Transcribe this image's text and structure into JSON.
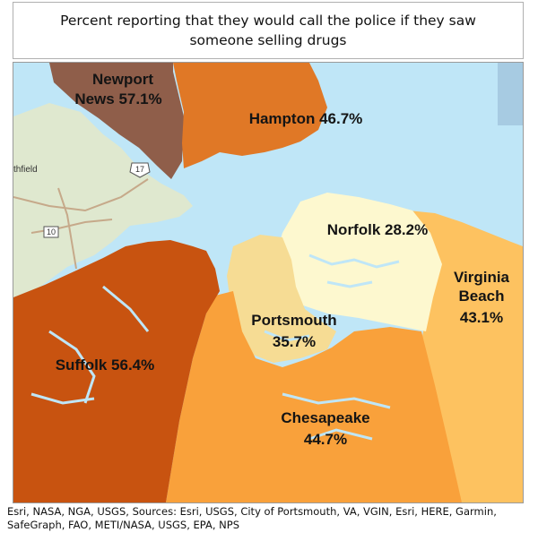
{
  "title": "Percent reporting that they would call the police if they saw someone selling drugs",
  "credits": "Esri, NASA, NGA, USGS, Sources: Esri, USGS, City of Portsmouth, VA, VGIN, Esri, HERE, Garmin, SafeGraph, FAO, METI/NASA, USGS, EPA, NPS",
  "colors": {
    "water": "#bfe6f7",
    "land": "#dfe8cf",
    "newport_news": "#8f5e4a",
    "hampton": "#e07826",
    "norfolk": "#fdf8cf",
    "virginia_beach": "#fdc260",
    "portsmouth": "#f6dc94",
    "chesapeake": "#f9a13b",
    "suffolk": "#c85310",
    "offshore": "#a7cbe2"
  },
  "regions": [
    {
      "name": "Newport News",
      "line1": "Newport",
      "line2": "News 57.1%",
      "value": 57.1
    },
    {
      "name": "Hampton",
      "line1": "Hampton 46.7%",
      "value": 46.7
    },
    {
      "name": "Norfolk",
      "line1": "Norfolk 28.2%",
      "value": 28.2
    },
    {
      "name": "Virginia Beach",
      "line1": "Virginia",
      "line2": "Beach",
      "line3": "43.1%",
      "value": 43.1
    },
    {
      "name": "Portsmouth",
      "line1": "Portsmouth",
      "line2": "35.7%",
      "value": 35.7
    },
    {
      "name": "Suffolk",
      "line1": "Suffolk 56.4%",
      "value": 56.4
    },
    {
      "name": "Chesapeake",
      "line1": "Chesapeake",
      "line2": "44.7%",
      "value": 44.7
    }
  ],
  "basemap_labels": {
    "place": "thfield",
    "route_17": "17",
    "route_10": "10"
  }
}
